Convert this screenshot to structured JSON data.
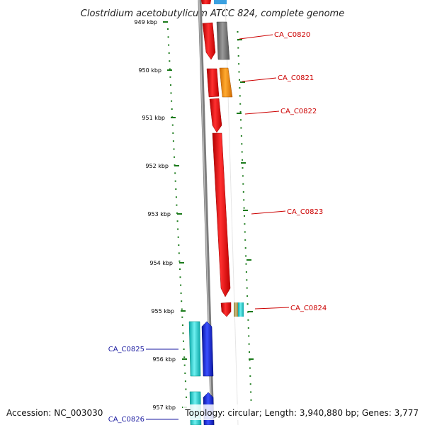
{
  "title": "Clostridium acetobutylicum ATCC 824, complete genome",
  "footer": {
    "accession": "Accession: NC_003030",
    "topology": "Topology: circular; Length: 3,940,880 bp; Genes: 3,777"
  },
  "colors": {
    "ruler_tick": "#1a7a1a",
    "backbone": "#8a8a8a",
    "gene_red": "#e8181c",
    "gene_grey": "#7a7a7a",
    "gene_orange": "#f08a10",
    "gene_cyan": "#1ec8c8",
    "gene_blue": "#1428d8",
    "gene_olive": "#b0a060",
    "label_red": "#cc0000",
    "label_blue": "#1a1aa0"
  },
  "ruler": [
    {
      "label": "949 kbp"
    },
    {
      "label": "950 kbp"
    },
    {
      "label": "951 kbp"
    },
    {
      "label": "952 kbp"
    },
    {
      "label": "953 kbp"
    },
    {
      "label": "954 kbp"
    },
    {
      "label": "955 kbp"
    },
    {
      "label": "956 kbp"
    },
    {
      "label": "957 kbp"
    }
  ],
  "gene_labels": [
    {
      "text": "CA_C0820",
      "color": "red"
    },
    {
      "text": "CA_C0821",
      "color": "red"
    },
    {
      "text": "CA_C0822",
      "color": "red"
    },
    {
      "text": "CA_C0823",
      "color": "red"
    },
    {
      "text": "CA_C0824",
      "color": "red"
    },
    {
      "text": "CA_C0825",
      "color": "blue"
    },
    {
      "text": "CA_C0826",
      "color": "blue"
    }
  ]
}
